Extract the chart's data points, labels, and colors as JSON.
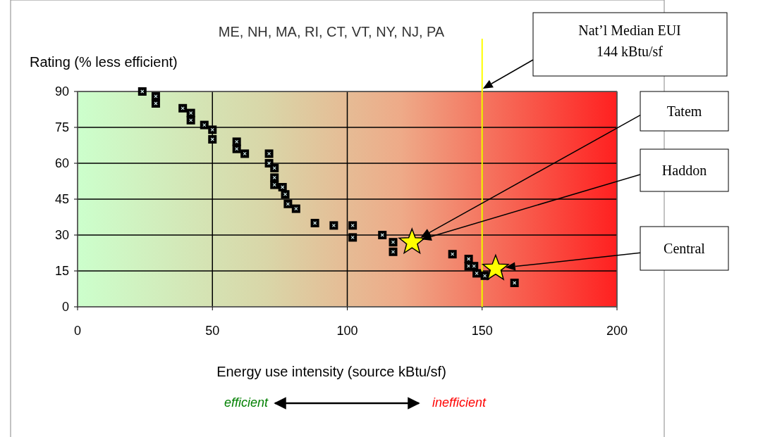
{
  "chart_data": {
    "type": "scatter",
    "title": "ME, NH, MA, RI, CT, VT, NY, NJ, PA",
    "ylabel": "Rating (% less efficient)",
    "xlabel": "Energy use intensity (source kBtu/sf)",
    "xlim": [
      0,
      200
    ],
    "xticks": [
      0,
      50,
      100,
      150,
      200
    ],
    "ylim": [
      0,
      90
    ],
    "yticks": [
      0,
      15,
      30,
      45,
      60,
      75,
      90
    ],
    "grid": true,
    "series": [
      {
        "color": "#000000",
        "marker": "square",
        "x": [
          24,
          29,
          29,
          39,
          42,
          42,
          47,
          50,
          50,
          59,
          59,
          62,
          71,
          71,
          73,
          73,
          73,
          76,
          77,
          78,
          81,
          88,
          95,
          102,
          102,
          113,
          117,
          117,
          139,
          145,
          145,
          147,
          148,
          151,
          162
        ],
        "values": [
          90,
          88,
          85,
          83,
          81,
          78,
          76,
          74,
          70,
          69,
          66,
          64,
          64,
          60,
          58,
          54,
          51,
          50,
          47,
          43,
          41,
          35,
          34,
          34,
          29,
          30,
          27,
          23,
          22,
          20,
          17,
          17,
          14,
          13,
          10
        ]
      },
      {
        "color": "#ffff00",
        "marker": "star",
        "x": [
          124,
          155
        ],
        "values": [
          27,
          16
        ]
      }
    ],
    "ref_lines": [
      {
        "axis": "x",
        "value": 150,
        "color": "#ffff00"
      }
    ],
    "annotations": [
      "Nat’l Median EUI\n144 kBtu/sf",
      "Tatem",
      "Haddon",
      "Central",
      "efficient",
      "inefficient"
    ]
  }
}
